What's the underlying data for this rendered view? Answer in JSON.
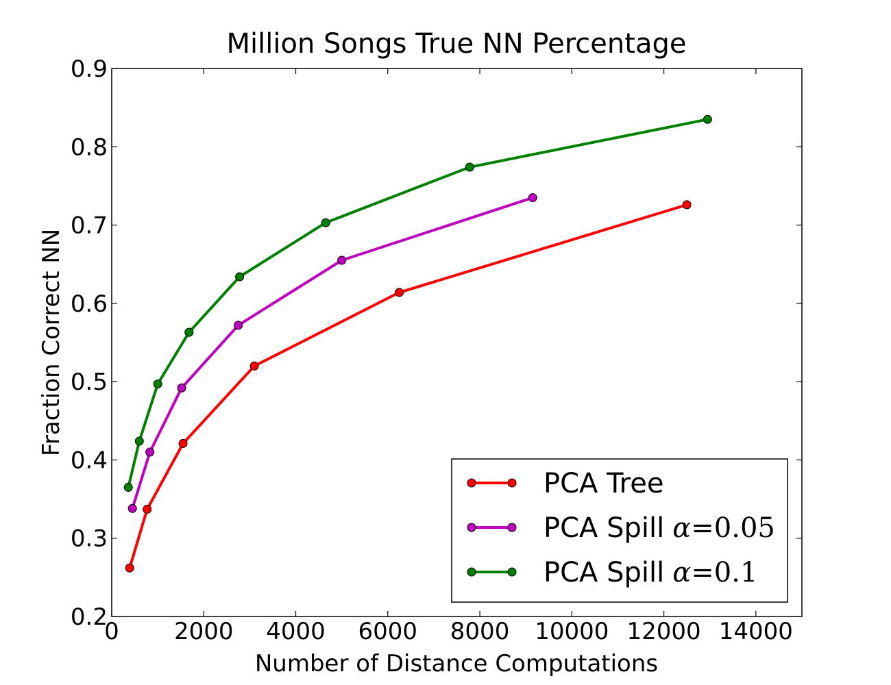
{
  "chart_data": {
    "type": "line",
    "title": "Million Songs True NN Percentage",
    "xlabel": "Number of Distance Computations",
    "ylabel": "Fraction Correct NN",
    "xlim": [
      0,
      15000
    ],
    "ylim": [
      0.2,
      0.9
    ],
    "x_ticks": [
      "0",
      "2000",
      "4000",
      "6000",
      "8000",
      "10000",
      "12000",
      "14000"
    ],
    "y_ticks": [
      "0.2",
      "0.3",
      "0.4",
      "0.5",
      "0.6",
      "0.7",
      "0.8",
      "0.9"
    ],
    "grid": false,
    "legend_position": "bottom-right",
    "series": [
      {
        "name": "PCA Tree",
        "color": "#ff0000",
        "x": [
          390,
          770,
          1550,
          3100,
          6250,
          12500
        ],
        "y": [
          0.262,
          0.337,
          0.421,
          0.52,
          0.614,
          0.726
        ]
      },
      {
        "name": "PCA Spill",
        "alpha": "0.05",
        "color": "#bf00bf",
        "x": [
          450,
          830,
          1520,
          2750,
          5000,
          9150
        ],
        "y": [
          0.338,
          0.41,
          0.492,
          0.572,
          0.655,
          0.735
        ]
      },
      {
        "name": "PCA Spill",
        "alpha": "0.1",
        "color": "#008000",
        "x": [
          360,
          600,
          1000,
          1680,
          2780,
          4650,
          7780,
          12950
        ],
        "y": [
          0.365,
          0.424,
          0.497,
          0.563,
          0.634,
          0.703,
          0.774,
          0.835
        ]
      }
    ]
  }
}
